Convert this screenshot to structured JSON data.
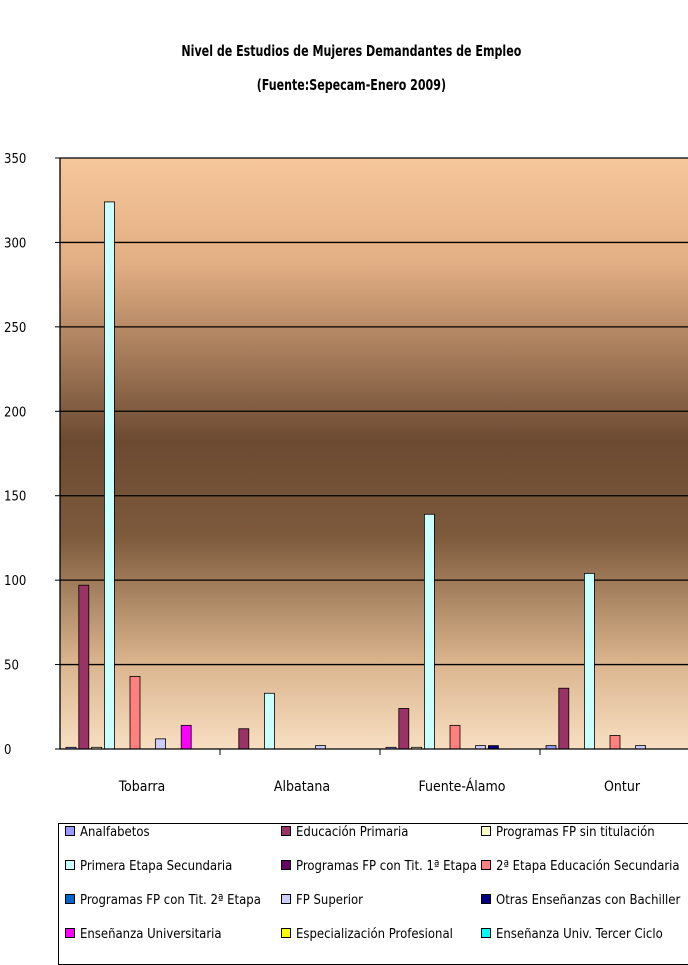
{
  "chart_data": {
    "type": "bar",
    "title": "Nivel de Estudios de Mujeres Demandantes de Empleo",
    "subtitle": "(Fuente:Sepecam-Enero 2009)",
    "categories": [
      "Tobarra",
      "Albatana",
      "Fuente-Álamo",
      "Ontur"
    ],
    "ylim": [
      0,
      350
    ],
    "yticks": [
      0,
      50,
      100,
      150,
      200,
      250,
      300,
      350
    ],
    "grid": true,
    "legend_position": "bottom",
    "series": [
      {
        "name": "Analfabetos",
        "color": "#9999ff",
        "values": [
          1,
          0,
          1,
          2
        ]
      },
      {
        "name": "Educación Primaria",
        "color": "#993366",
        "values": [
          97,
          12,
          24,
          36
        ]
      },
      {
        "name": "Programas FP sin titulación",
        "color": "#ffffcc",
        "values": [
          1,
          0,
          1,
          0
        ]
      },
      {
        "name": "Primera Etapa Secundaria",
        "color": "#ccffff",
        "values": [
          324,
          33,
          139,
          104
        ]
      },
      {
        "name": "Programas FP con Tit. 1ª Etapa",
        "color": "#660066",
        "values": [
          0,
          0,
          0,
          0
        ]
      },
      {
        "name": "2ª Etapa Educación Secundaria",
        "color": "#ff8080",
        "values": [
          43,
          0,
          14,
          8
        ]
      },
      {
        "name": "Programas FP con Tit. 2ª Etapa",
        "color": "#0066cc",
        "values": [
          0,
          0,
          0,
          0
        ]
      },
      {
        "name": "FP Superior",
        "color": "#ccccff",
        "values": [
          6,
          2,
          2,
          2
        ]
      },
      {
        "name": "Otras Enseñanzas con Bachiller",
        "color": "#000080",
        "values": [
          0,
          0,
          2,
          0
        ]
      },
      {
        "name": "Enseñanza Universitaria",
        "color": "#ff00ff",
        "values": [
          14,
          0,
          0,
          0
        ]
      },
      {
        "name": "Especialización Profesional",
        "color": "#ffff00",
        "values": [
          0,
          0,
          0,
          0
        ]
      },
      {
        "name": "Enseñanza Univ. Tercer Ciclo",
        "color": "#00ffff",
        "values": [
          0,
          0,
          0,
          0
        ]
      }
    ]
  },
  "legend": {
    "items": [
      "Analfabetos",
      "Educación Primaria",
      "Programas FP sin titulación",
      "Primera Etapa Secundaria",
      "Programas FP con Tit. 1ª Etapa",
      "2ª Etapa Educación Secundaria",
      "Programas FP con Tit. 2ª Etapa",
      "FP Superior",
      "Otras Enseñanzas con Bachiller",
      "Enseñanza Universitaria",
      "Especialización Profesional",
      "Enseñanza Univ. Tercer Ciclo"
    ],
    "colors": [
      "#9999ff",
      "#993366",
      "#ffffcc",
      "#ccffff",
      "#660066",
      "#ff8080",
      "#0066cc",
      "#ccccff",
      "#000080",
      "#ff00ff",
      "#ffff00",
      "#00ffff"
    ]
  }
}
